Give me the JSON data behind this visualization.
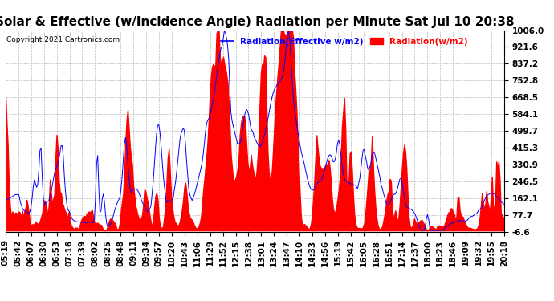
{
  "title": "Solar & Effective (w/Incidence Angle) Radiation per Minute Sat Jul 10 20:38",
  "copyright": "Copyright 2021 Cartronics.com",
  "legend_blue": "Radiation(Effective w/m2)",
  "legend_red": "Radiation(w/m2)",
  "yticks": [
    1006.0,
    921.6,
    837.2,
    752.8,
    668.5,
    584.1,
    499.7,
    415.3,
    330.9,
    246.5,
    162.1,
    77.7,
    -6.6
  ],
  "ymin": -6.6,
  "ymax": 1006.0,
  "bg_color": "#ffffff",
  "plot_bg_color": "#ffffff",
  "grid_color": "#bbbbbb",
  "fill_color": "#ff0000",
  "line_color_blue": "#0000ff",
  "title_fontsize": 11,
  "tick_fontsize": 7.5,
  "n_points": 450,
  "time_labels": [
    "05:19",
    "05:42",
    "06:07",
    "06:30",
    "06:53",
    "07:16",
    "07:39",
    "08:02",
    "08:25",
    "08:48",
    "09:11",
    "09:34",
    "09:57",
    "10:20",
    "10:43",
    "11:06",
    "11:29",
    "11:52",
    "12:15",
    "12:38",
    "13:01",
    "13:24",
    "13:47",
    "14:10",
    "14:33",
    "14:56",
    "15:19",
    "15:42",
    "16:05",
    "16:28",
    "16:51",
    "17:14",
    "17:37",
    "18:00",
    "18:23",
    "18:46",
    "19:09",
    "19:32",
    "19:55",
    "20:18"
  ]
}
